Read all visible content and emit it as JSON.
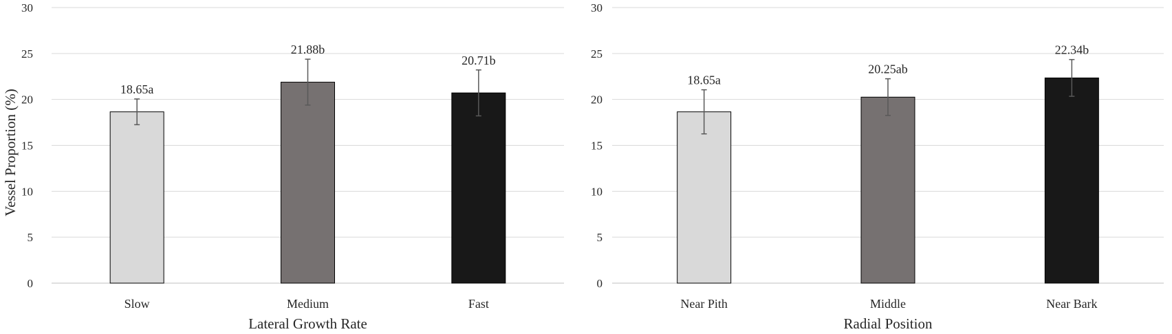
{
  "ylabel": "Vessel Proportion (%)",
  "chart_data": [
    {
      "type": "bar",
      "title": "",
      "xlabel": "Lateral Growth Rate",
      "ylabel": "Vessel Proportion (%)",
      "ylim": [
        0,
        30
      ],
      "yticks": [
        "0",
        "5",
        "10",
        "15",
        "20",
        "25",
        "30"
      ],
      "grid": true,
      "categories": [
        "Slow",
        "Medium",
        "Fast"
      ],
      "values": [
        18.65,
        21.88,
        20.71
      ],
      "errors": [
        1.4,
        2.5,
        2.5
      ],
      "labels": [
        "18.65a",
        "21.88b",
        "20.71b"
      ],
      "colors": [
        "#d9d9d9",
        "#767171",
        "#181818"
      ]
    },
    {
      "type": "bar",
      "title": "",
      "xlabel": "Radial Position",
      "ylabel": "",
      "ylim": [
        0,
        30
      ],
      "yticks": [
        "0",
        "5",
        "10",
        "15",
        "20",
        "25",
        "30"
      ],
      "grid": true,
      "categories": [
        "Near Pith",
        "Middle",
        "Near Bark"
      ],
      "values": [
        18.65,
        20.25,
        22.34
      ],
      "errors": [
        2.4,
        2.0,
        2.0
      ],
      "labels": [
        "18.65a",
        "20.25ab",
        "22.34b"
      ],
      "colors": [
        "#d9d9d9",
        "#767171",
        "#181818"
      ]
    }
  ]
}
